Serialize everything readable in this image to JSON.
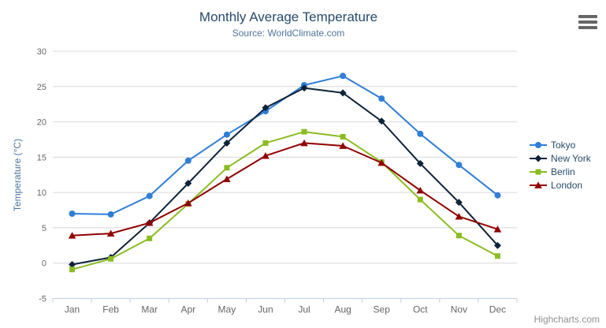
{
  "header": {
    "export_menu_icon": "hamburger-icon"
  },
  "credits": "Highcharts.com",
  "chart_data": {
    "type": "line",
    "title": "Monthly Average Temperature",
    "subtitle": "Source: WorldClimate.com",
    "xlabel": "",
    "ylabel": "Temperature (°C)",
    "categories": [
      "Jan",
      "Feb",
      "Mar",
      "Apr",
      "May",
      "Jun",
      "Jul",
      "Aug",
      "Sep",
      "Oct",
      "Nov",
      "Dec"
    ],
    "y_ticks": [
      30,
      25,
      20,
      15,
      10,
      5,
      0,
      -5
    ],
    "ylim": [
      -5,
      30
    ],
    "grid": "horizontal",
    "legend_position": "right",
    "series": [
      {
        "name": "Tokyo",
        "color": "#2f7ed8",
        "marker": "circle",
        "values": [
          7.0,
          6.9,
          9.5,
          14.5,
          18.2,
          21.5,
          25.2,
          26.5,
          23.3,
          18.3,
          13.9,
          9.6
        ]
      },
      {
        "name": "New York",
        "color": "#0d233a",
        "marker": "diamond",
        "values": [
          -0.2,
          0.8,
          5.7,
          11.3,
          17.0,
          22.0,
          24.8,
          24.1,
          20.1,
          14.1,
          8.6,
          2.5
        ]
      },
      {
        "name": "Berlin",
        "color": "#8bbc21",
        "marker": "square",
        "values": [
          -0.9,
          0.6,
          3.5,
          8.4,
          13.5,
          17.0,
          18.6,
          17.9,
          14.3,
          9.0,
          3.9,
          1.0
        ]
      },
      {
        "name": "London",
        "color": "#910000",
        "marker": "triangle",
        "values": [
          3.9,
          4.2,
          5.7,
          8.5,
          11.9,
          15.2,
          17.0,
          16.6,
          14.2,
          10.3,
          6.6,
          4.8
        ]
      }
    ],
    "colors": {
      "grid": "#d8d8d8",
      "axis_line": "#c0d0e0",
      "axis_label": "#666666",
      "title": "#274b6d",
      "subtitle": "#4d759e",
      "axis_title": "#4d759e",
      "legend_text": "#274b6d",
      "credits": "#909090"
    }
  }
}
